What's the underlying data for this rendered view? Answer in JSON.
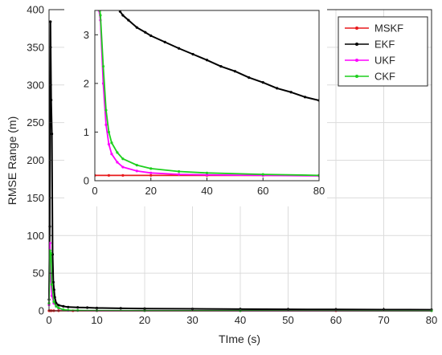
{
  "chart_data": [
    {
      "type": "line",
      "role": "main",
      "xlabel": "TIme (s)",
      "ylabel": "RMSE Range (m)",
      "xlim": [
        0,
        80
      ],
      "ylim": [
        0,
        400
      ],
      "xticks": [
        0,
        10,
        20,
        30,
        40,
        50,
        60,
        70,
        80
      ],
      "yticks": [
        0,
        50,
        100,
        150,
        200,
        250,
        300,
        350,
        400
      ],
      "grid": true,
      "legend_position": "top-right",
      "series": [
        {
          "name": "MSKF",
          "color": "#e8191b",
          "x": [
            0,
            0.2,
            0.5,
            1,
            2,
            5,
            10,
            20,
            40,
            60,
            80
          ],
          "values": [
            0.15,
            0.13,
            0.12,
            0.12,
            0.11,
            0.11,
            0.11,
            0.11,
            0.11,
            0.11,
            0.11
          ]
        },
        {
          "name": "EKF",
          "color": "#000000",
          "x": [
            0,
            0.15,
            0.3,
            0.45,
            0.6,
            0.75,
            0.9,
            1.05,
            1.2,
            1.5,
            2,
            3,
            4,
            6,
            8,
            10,
            15,
            20,
            30,
            40,
            50,
            60,
            70,
            80
          ],
          "values": [
            15,
            112,
            384,
            280,
            235,
            75,
            38,
            28,
            18,
            10,
            7.5,
            6,
            5,
            4.5,
            4.3,
            3.8,
            3.3,
            3.0,
            2.6,
            2.3,
            2.0,
            1.8,
            1.65,
            1.5
          ]
        },
        {
          "name": "UKF",
          "color": "#ff00ff",
          "x": [
            0,
            0.2,
            0.4,
            0.6,
            1,
            1.5,
            2,
            3,
            4,
            6,
            10,
            20,
            40,
            80
          ],
          "values": [
            8,
            90,
            40,
            20,
            10,
            6,
            3.3,
            1.2,
            0.6,
            0.35,
            0.22,
            0.15,
            0.12,
            0.1
          ]
        },
        {
          "name": "CKF",
          "color": "#1ecf1e",
          "x": [
            0,
            0.2,
            0.4,
            0.6,
            1,
            1.5,
            2,
            3,
            4,
            6,
            10,
            20,
            40,
            80
          ],
          "values": [
            10,
            80,
            76,
            35,
            12,
            6,
            3.7,
            1.6,
            0.9,
            0.55,
            0.35,
            0.22,
            0.15,
            0.1
          ]
        }
      ]
    },
    {
      "type": "line",
      "role": "inset",
      "xlim": [
        0,
        80
      ],
      "ylim": [
        0,
        3.5
      ],
      "xticks": [
        0,
        20,
        40,
        60,
        80
      ],
      "yticks": [
        0,
        1,
        2,
        3
      ],
      "grid": false,
      "series": [
        {
          "name": "MSKF",
          "color": "#e8191b",
          "x": [
            0,
            5,
            10,
            20,
            40,
            60,
            80
          ],
          "values": [
            0.11,
            0.11,
            0.11,
            0.11,
            0.11,
            0.11,
            0.11
          ]
        },
        {
          "name": "EKF",
          "color": "#000000",
          "x": [
            9,
            10,
            12,
            15,
            18,
            20,
            25,
            30,
            35,
            40,
            45,
            50,
            55,
            60,
            65,
            70,
            75,
            80
          ],
          "values": [
            3.48,
            3.4,
            3.3,
            3.15,
            3.05,
            2.98,
            2.85,
            2.72,
            2.6,
            2.48,
            2.35,
            2.25,
            2.12,
            2.02,
            1.9,
            1.82,
            1.72,
            1.65
          ]
        },
        {
          "name": "UKF",
          "color": "#ff00ff",
          "x": [
            1.5,
            2,
            3,
            4,
            5,
            6,
            8,
            10,
            15,
            20,
            30,
            40,
            60,
            80
          ],
          "values": [
            3.5,
            3.3,
            2.0,
            1.15,
            0.75,
            0.55,
            0.38,
            0.28,
            0.2,
            0.16,
            0.13,
            0.12,
            0.11,
            0.1
          ]
        },
        {
          "name": "CKF",
          "color": "#1ecf1e",
          "x": [
            1.8,
            2,
            3,
            4,
            5,
            6,
            8,
            10,
            15,
            20,
            30,
            40,
            60,
            80
          ],
          "values": [
            3.5,
            3.4,
            2.35,
            1.45,
            1.0,
            0.78,
            0.58,
            0.45,
            0.32,
            0.25,
            0.19,
            0.16,
            0.13,
            0.11
          ]
        }
      ]
    }
  ]
}
